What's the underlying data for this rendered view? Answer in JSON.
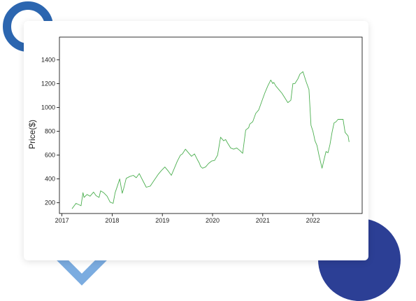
{
  "colors": {
    "ring": "#2c66b0",
    "diamond": "#7bace0",
    "circle": "#2c3f95",
    "line": "#4caf50"
  },
  "chart_data": {
    "type": "line",
    "title": "",
    "xlabel": "",
    "ylabel": "Price($)",
    "xlim": [
      2016.95,
      2022.98
    ],
    "ylim": [
      110,
      1590
    ],
    "x_ticks": [
      2017,
      2018,
      2019,
      2020,
      2021,
      2022
    ],
    "y_ticks": [
      200,
      400,
      600,
      800,
      1000,
      1200,
      1400
    ],
    "grid": false,
    "series": [
      {
        "x": [
          2017.2,
          2017.28,
          2017.38,
          2017.42,
          2017.44,
          2017.5,
          2017.56,
          2017.63,
          2017.68,
          2017.74,
          2017.77,
          2017.83,
          2017.9,
          2017.96,
          2018.02,
          2018.06,
          2018.1,
          2018.15,
          2018.2,
          2018.23,
          2018.28,
          2018.35,
          2018.42,
          2018.48,
          2018.54,
          2018.6,
          2018.68,
          2018.76,
          2018.84,
          2018.92,
          2018.98,
          2019.05,
          2019.12,
          2019.18,
          2019.24,
          2019.3,
          2019.36,
          2019.4,
          2019.46,
          2019.52,
          2019.58,
          2019.64,
          2019.7,
          2019.74,
          2019.76,
          2019.8,
          2019.86,
          2019.92,
          2019.98,
          2020.04,
          2020.1,
          2020.16,
          2020.22,
          2020.26,
          2020.3,
          2020.36,
          2020.42,
          2020.48,
          2020.54,
          2020.6,
          2020.66,
          2020.72,
          2020.74,
          2020.8,
          2020.86,
          2020.92,
          2020.98,
          2021.04,
          2021.1,
          2021.16,
          2021.2,
          2021.22,
          2021.26,
          2021.32,
          2021.38,
          2021.44,
          2021.5,
          2021.56,
          2021.6,
          2021.64,
          2021.7,
          2021.74,
          2021.8,
          2021.86,
          2021.92,
          2021.96,
          2022.0,
          2022.02,
          2022.04,
          2022.08,
          2022.12,
          2022.18,
          2022.22,
          2022.26,
          2022.3,
          2022.34,
          2022.38,
          2022.42,
          2022.46,
          2022.5,
          2022.55,
          2022.6,
          2022.64,
          2022.68,
          2022.7,
          2022.72
        ],
        "y": [
          150,
          195,
          175,
          285,
          245,
          270,
          255,
          290,
          260,
          245,
          300,
          285,
          255,
          205,
          195,
          285,
          335,
          400,
          280,
          320,
          405,
          420,
          430,
          410,
          445,
          395,
          330,
          340,
          390,
          440,
          470,
          500,
          465,
          430,
          490,
          550,
          600,
          610,
          650,
          620,
          590,
          610,
          560,
          530,
          505,
          490,
          500,
          530,
          550,
          555,
          600,
          750,
          720,
          730,
          700,
          660,
          650,
          660,
          640,
          615,
          810,
          830,
          860,
          880,
          950,
          980,
          1050,
          1120,
          1180,
          1230,
          1200,
          1210,
          1180,
          1150,
          1120,
          1080,
          1040,
          1060,
          1200,
          1200,
          1240,
          1280,
          1300,
          1220,
          1150,
          850,
          800,
          760,
          720,
          680,
          600,
          490,
          560,
          630,
          620,
          690,
          790,
          870,
          880,
          900,
          900,
          900,
          790,
          770,
          760,
          710
        ]
      }
    ]
  }
}
